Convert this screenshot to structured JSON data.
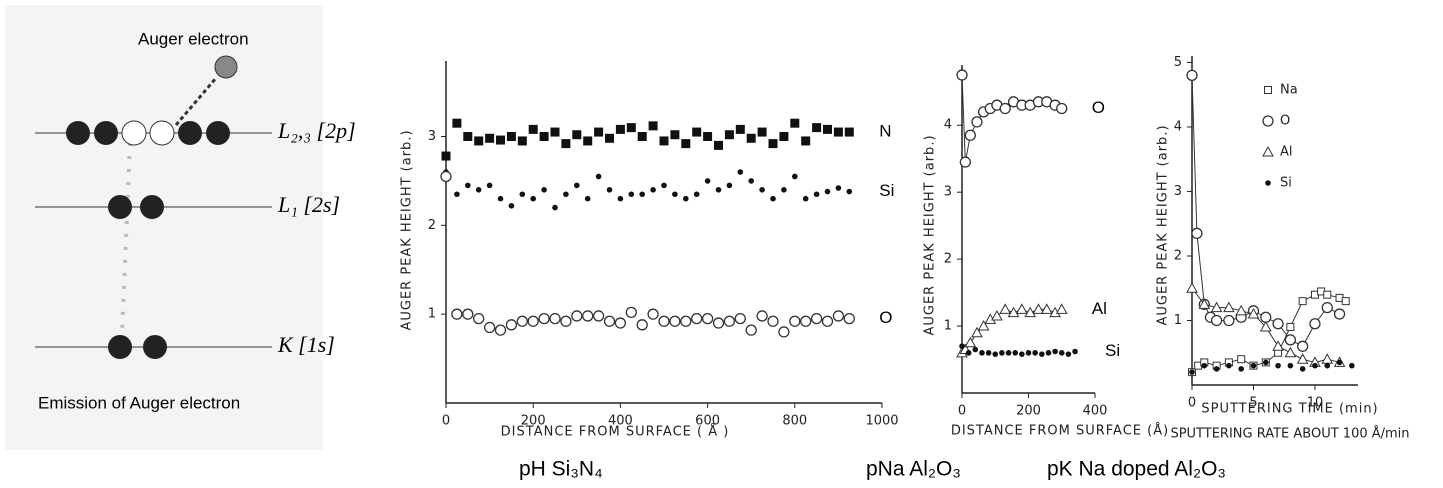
{
  "diagram": {
    "top_label": "Auger electron",
    "levels": [
      "L₂,₃ [2p]",
      "L₁ [2s]",
      "K [1s]"
    ],
    "caption": "Emission of Auger electron"
  },
  "chart_data": [
    {
      "type": "scatter",
      "caption": "pH Si₃N₄",
      "x_label": "DISTANCE FROM SURFACE ( Å )",
      "y_label": "AUGER PEAK HEIGHT (arb.)",
      "xlim": [
        0,
        1000
      ],
      "ylim": [
        0,
        3.85
      ],
      "xticks": [
        0,
        200,
        400,
        600,
        800,
        1000
      ],
      "yticks": [
        1,
        2,
        3
      ],
      "legend": "inline",
      "series": [
        {
          "name": "N",
          "marker": "square-filled",
          "color": "#111",
          "line": false,
          "x": [
            0,
            25,
            50,
            75,
            100,
            125,
            150,
            175,
            200,
            225,
            250,
            275,
            300,
            325,
            350,
            375,
            400,
            425,
            450,
            475,
            500,
            525,
            550,
            575,
            600,
            625,
            650,
            675,
            700,
            725,
            750,
            775,
            800,
            825,
            850,
            875,
            900,
            925
          ],
          "values": [
            2.78,
            3.15,
            3.0,
            2.95,
            2.98,
            2.96,
            3.0,
            2.95,
            3.08,
            3.0,
            3.05,
            2.92,
            3.02,
            2.95,
            3.05,
            2.98,
            3.08,
            3.1,
            3.0,
            3.12,
            2.95,
            3.02,
            2.92,
            3.05,
            3.0,
            2.9,
            3.02,
            3.08,
            2.98,
            3.05,
            2.92,
            3.0,
            3.15,
            2.95,
            3.1,
            3.08,
            3.05,
            3.05
          ]
        },
        {
          "name": "Si",
          "marker": "dot",
          "color": "#111",
          "line": false,
          "x": [
            0,
            25,
            50,
            75,
            100,
            125,
            150,
            175,
            200,
            225,
            250,
            275,
            300,
            325,
            350,
            375,
            400,
            425,
            450,
            475,
            500,
            525,
            550,
            575,
            600,
            625,
            650,
            675,
            700,
            725,
            750,
            775,
            800,
            825,
            850,
            875,
            900,
            925
          ],
          "values": [
            2.6,
            2.35,
            2.45,
            2.4,
            2.45,
            2.3,
            2.22,
            2.35,
            2.3,
            2.4,
            2.2,
            2.35,
            2.45,
            2.3,
            2.55,
            2.4,
            2.3,
            2.35,
            2.35,
            2.4,
            2.45,
            2.35,
            2.3,
            2.35,
            2.5,
            2.4,
            2.45,
            2.6,
            2.5,
            2.4,
            2.3,
            2.4,
            2.55,
            2.3,
            2.35,
            2.38,
            2.42,
            2.38
          ]
        },
        {
          "name": "O",
          "marker": "circle-open",
          "color": "#333",
          "line": false,
          "x": [
            0,
            25,
            50,
            75,
            100,
            125,
            150,
            175,
            200,
            225,
            250,
            275,
            300,
            325,
            350,
            375,
            400,
            425,
            450,
            475,
            500,
            525,
            550,
            575,
            600,
            625,
            650,
            675,
            700,
            725,
            750,
            775,
            800,
            825,
            850,
            875,
            900,
            925
          ],
          "values": [
            2.55,
            1.0,
            1.0,
            0.95,
            0.85,
            0.82,
            0.88,
            0.92,
            0.92,
            0.95,
            0.95,
            0.92,
            0.98,
            0.98,
            0.98,
            0.92,
            0.9,
            1.02,
            0.88,
            1.0,
            0.92,
            0.92,
            0.92,
            0.95,
            0.95,
            0.9,
            0.92,
            0.95,
            0.82,
            0.98,
            0.92,
            0.8,
            0.92,
            0.92,
            0.95,
            0.92,
            0.98,
            0.95
          ]
        }
      ]
    },
    {
      "type": "scatter",
      "caption": "pNa Al₂O₃",
      "x_label": "DISTANCE FROM SURFACE (Å)",
      "y_label": "AUGER PEAK HEIGHT (arb.)",
      "xlim": [
        0,
        400
      ],
      "ylim": [
        0,
        4.9
      ],
      "xticks": [
        0,
        200,
        400
      ],
      "yticks": [
        1,
        2,
        3,
        4
      ],
      "legend": "inline",
      "series": [
        {
          "name": "O",
          "marker": "circle-open",
          "color": "#333",
          "line": true,
          "x": [
            0,
            10,
            25,
            45,
            65,
            85,
            105,
            130,
            155,
            180,
            205,
            230,
            255,
            280,
            300
          ],
          "values": [
            4.75,
            3.45,
            3.85,
            4.05,
            4.2,
            4.25,
            4.3,
            4.25,
            4.35,
            4.3,
            4.3,
            4.35,
            4.35,
            4.3,
            4.25
          ]
        },
        {
          "name": "Al",
          "marker": "triangle-open",
          "color": "#333",
          "line": true,
          "x": [
            0,
            10,
            25,
            45,
            65,
            85,
            105,
            130,
            155,
            180,
            205,
            230,
            255,
            280,
            300
          ],
          "values": [
            0.6,
            0.65,
            0.75,
            0.9,
            1.0,
            1.1,
            1.15,
            1.25,
            1.2,
            1.25,
            1.2,
            1.25,
            1.25,
            1.2,
            1.25
          ]
        },
        {
          "name": "Si",
          "marker": "dot",
          "color": "#111",
          "line": false,
          "x": [
            0,
            20,
            40,
            60,
            80,
            100,
            120,
            140,
            160,
            180,
            200,
            220,
            240,
            260,
            280,
            300,
            320,
            340
          ],
          "values": [
            0.7,
            0.6,
            0.65,
            0.6,
            0.6,
            0.58,
            0.6,
            0.6,
            0.6,
            0.58,
            0.6,
            0.6,
            0.58,
            0.6,
            0.62,
            0.6,
            0.58,
            0.62
          ]
        }
      ]
    },
    {
      "type": "scatter",
      "caption": "pK Na doped Al₂O₃",
      "x_label": "SPUTTERING TIME (min)",
      "note": "SPUTTERING RATE   ABOUT 100 Å/min",
      "y_label": "AUGER PEAK HEIGHT (arb.)",
      "xlim": [
        0,
        13.5
      ],
      "ylim": [
        0,
        5.1
      ],
      "xticks": [
        0,
        5,
        10
      ],
      "yticks": [
        1,
        2,
        3,
        4,
        5
      ],
      "legend": "upper right",
      "series": [
        {
          "name": "Na",
          "marker": "square-open",
          "color": "#333",
          "line": true,
          "x": [
            0,
            0.5,
            1,
            2,
            3,
            4,
            5,
            6,
            7,
            8,
            9,
            10,
            10.5,
            11,
            12,
            12.5
          ],
          "values": [
            0.2,
            0.3,
            0.35,
            0.3,
            0.35,
            0.4,
            0.3,
            0.35,
            0.5,
            0.9,
            1.3,
            1.4,
            1.45,
            1.4,
            1.35,
            1.3
          ]
        },
        {
          "name": "O",
          "marker": "circle-open",
          "color": "#333",
          "line": true,
          "x": [
            0,
            0.4,
            1,
            1.5,
            2,
            3,
            4,
            5,
            6,
            7,
            8,
            9,
            10,
            11,
            12
          ],
          "values": [
            4.8,
            2.35,
            1.25,
            1.05,
            1.0,
            1.0,
            1.05,
            1.15,
            1.05,
            0.95,
            0.7,
            0.6,
            0.95,
            1.2,
            1.1
          ]
        },
        {
          "name": "Al",
          "marker": "triangle-open",
          "color": "#333",
          "line": true,
          "x": [
            0,
            1,
            2,
            3,
            4,
            5,
            6,
            7,
            8,
            9,
            10,
            11,
            12
          ],
          "values": [
            1.5,
            1.25,
            1.2,
            1.2,
            1.15,
            1.1,
            0.9,
            0.6,
            0.5,
            0.4,
            0.35,
            0.4,
            0.35
          ]
        },
        {
          "name": "Si",
          "marker": "dot",
          "color": "#111",
          "line": false,
          "x": [
            0,
            1,
            2,
            3,
            4,
            5,
            6,
            7,
            8,
            9,
            10,
            11,
            12,
            13
          ],
          "values": [
            0.2,
            0.3,
            0.25,
            0.3,
            0.25,
            0.3,
            0.35,
            0.3,
            0.3,
            0.25,
            0.3,
            0.3,
            0.35,
            0.3
          ]
        }
      ]
    }
  ]
}
